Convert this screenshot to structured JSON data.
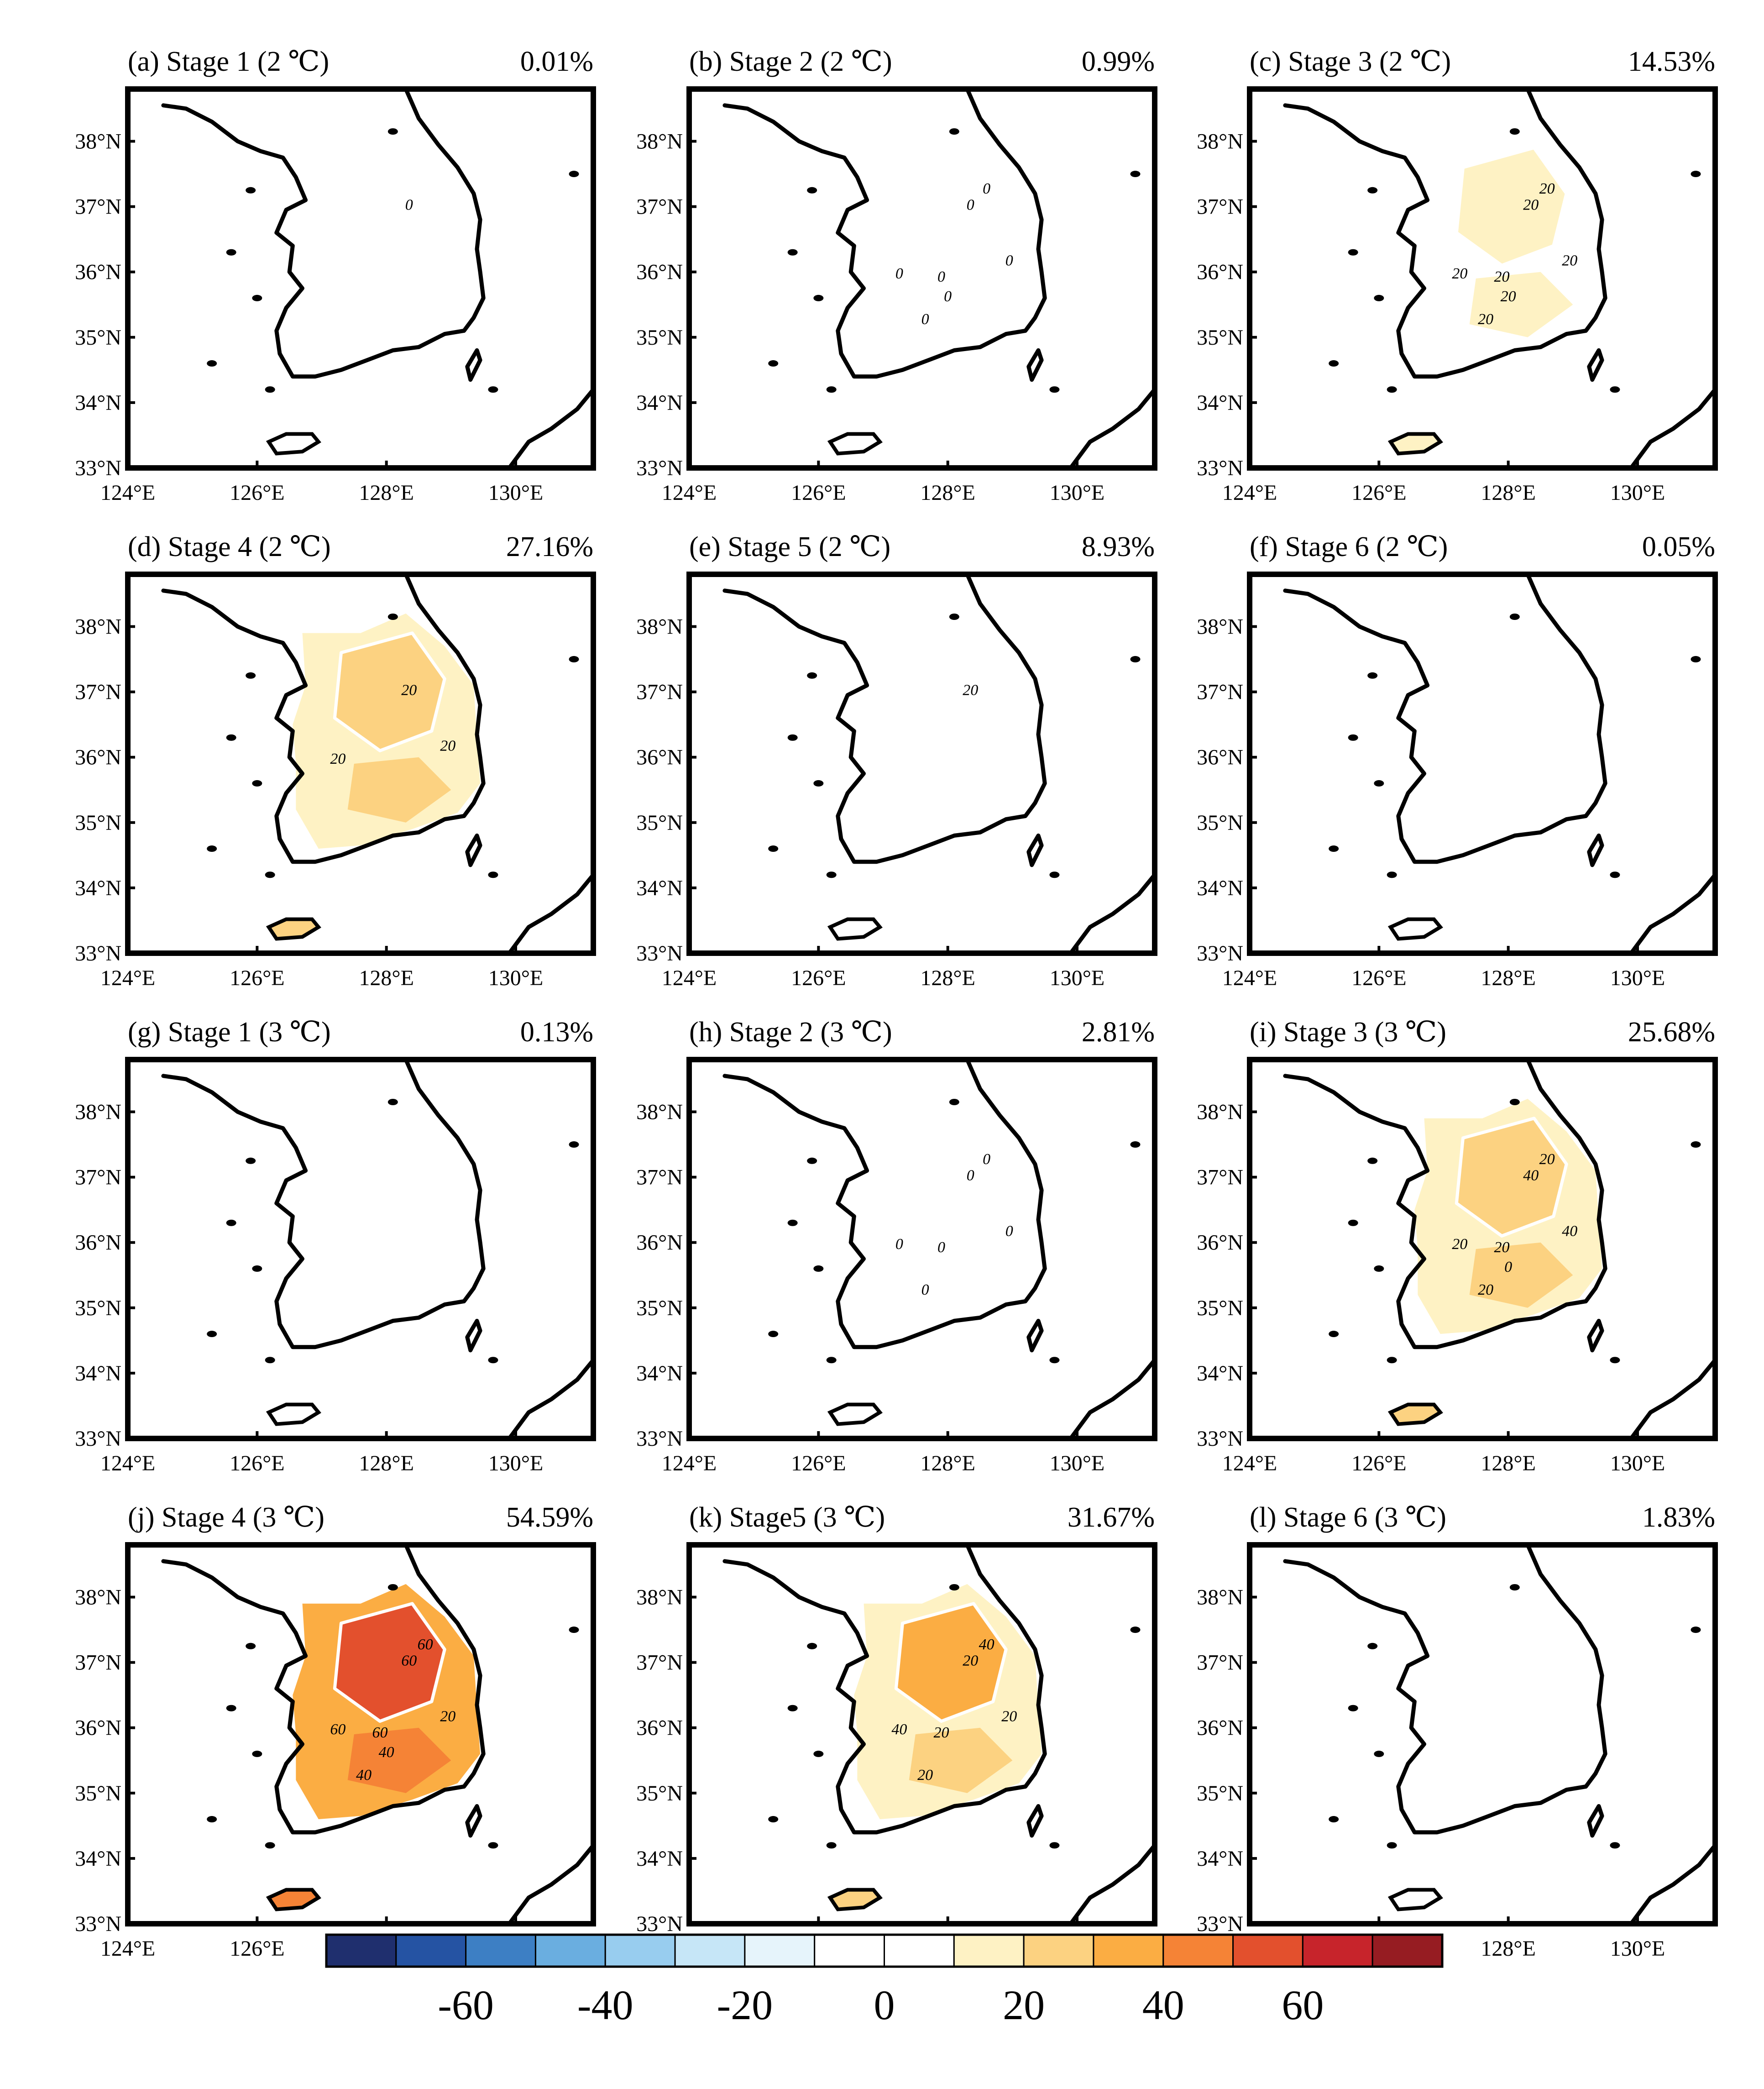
{
  "chart_data": {
    "type": "heatmap",
    "layout": "4x3 grid of maps",
    "x_ticks": [
      "124°E",
      "126°E",
      "128°E",
      "130°E"
    ],
    "y_ticks": [
      "38°N",
      "37°N",
      "36°N",
      "35°N",
      "34°N",
      "33°N"
    ],
    "lon_range": [
      124,
      131.2
    ],
    "lat_range": [
      33,
      38.8
    ],
    "panels": [
      {
        "id": "a",
        "title": "(a) Stage 1 (2 ℃)",
        "percent": "0.01%",
        "intensity": 0.01,
        "contour_labels": [
          "0"
        ]
      },
      {
        "id": "b",
        "title": "(b) Stage 2 (2 ℃)",
        "percent": "0.99%",
        "intensity": 0.99,
        "contour_labels": [
          "0",
          "0",
          "0",
          "0",
          "0",
          "0",
          "0"
        ]
      },
      {
        "id": "c",
        "title": "(c) Stage 3 (2 ℃)",
        "percent": "14.53%",
        "intensity": 14.53,
        "contour_labels": [
          "20",
          "20",
          "20",
          "20",
          "20",
          "20",
          "20"
        ]
      },
      {
        "id": "d",
        "title": "(d) Stage 4 (2 ℃)",
        "percent": "27.16%",
        "intensity": 27.16,
        "contour_labels": [
          "20",
          "20",
          "20"
        ]
      },
      {
        "id": "e",
        "title": "(e) Stage 5 (2 ℃)",
        "percent": "8.93%",
        "intensity": 8.93,
        "contour_labels": [
          "20"
        ]
      },
      {
        "id": "f",
        "title": "(f) Stage 6 (2 ℃)",
        "percent": "0.05%",
        "intensity": 0.05,
        "contour_labels": []
      },
      {
        "id": "g",
        "title": "(g) Stage 1 (3 ℃)",
        "percent": "0.13%",
        "intensity": 0.13,
        "contour_labels": []
      },
      {
        "id": "h",
        "title": "(h) Stage 2 (3 ℃)",
        "percent": "2.81%",
        "intensity": 2.81,
        "contour_labels": [
          "0",
          "0",
          "0",
          "0",
          "0",
          "0"
        ]
      },
      {
        "id": "i",
        "title": "(i) Stage 3 (3 ℃)",
        "percent": "25.68%",
        "intensity": 25.68,
        "contour_labels": [
          "40",
          "40",
          "20",
          "20",
          "20",
          "20",
          "0"
        ]
      },
      {
        "id": "j",
        "title": "(j) Stage 4 (3 ℃)",
        "percent": "54.59%",
        "intensity": 54.59,
        "contour_labels": [
          "60",
          "20",
          "60",
          "60",
          "40",
          "60",
          "40"
        ]
      },
      {
        "id": "k",
        "title": "(k) Stage5 (3 ℃)",
        "percent": "31.67%",
        "intensity": 31.67,
        "contour_labels": [
          "20",
          "20",
          "40",
          "20",
          "20",
          "40"
        ]
      },
      {
        "id": "l",
        "title": "(l) Stage 6 (3 ℃)",
        "percent": "1.83%",
        "intensity": 1.83,
        "contour_labels": []
      }
    ],
    "colorbar": {
      "labels": [
        "-60",
        "-40",
        "-20",
        "0",
        "20",
        "40",
        "60"
      ],
      "bins": [
        -80,
        -70,
        -60,
        -50,
        -40,
        -30,
        -20,
        -10,
        0,
        10,
        20,
        30,
        40,
        50,
        60,
        70,
        80
      ],
      "colors": [
        "#1f2f6e",
        "#2553a3",
        "#3d7fc4",
        "#6aaee0",
        "#98cdef",
        "#c6e6f7",
        "#e6f4fb",
        "#ffffff",
        "#ffffff",
        "#fef2c4",
        "#fcd281",
        "#fbad43",
        "#f58336",
        "#e3502d",
        "#c7242b",
        "#961c22"
      ]
    }
  }
}
